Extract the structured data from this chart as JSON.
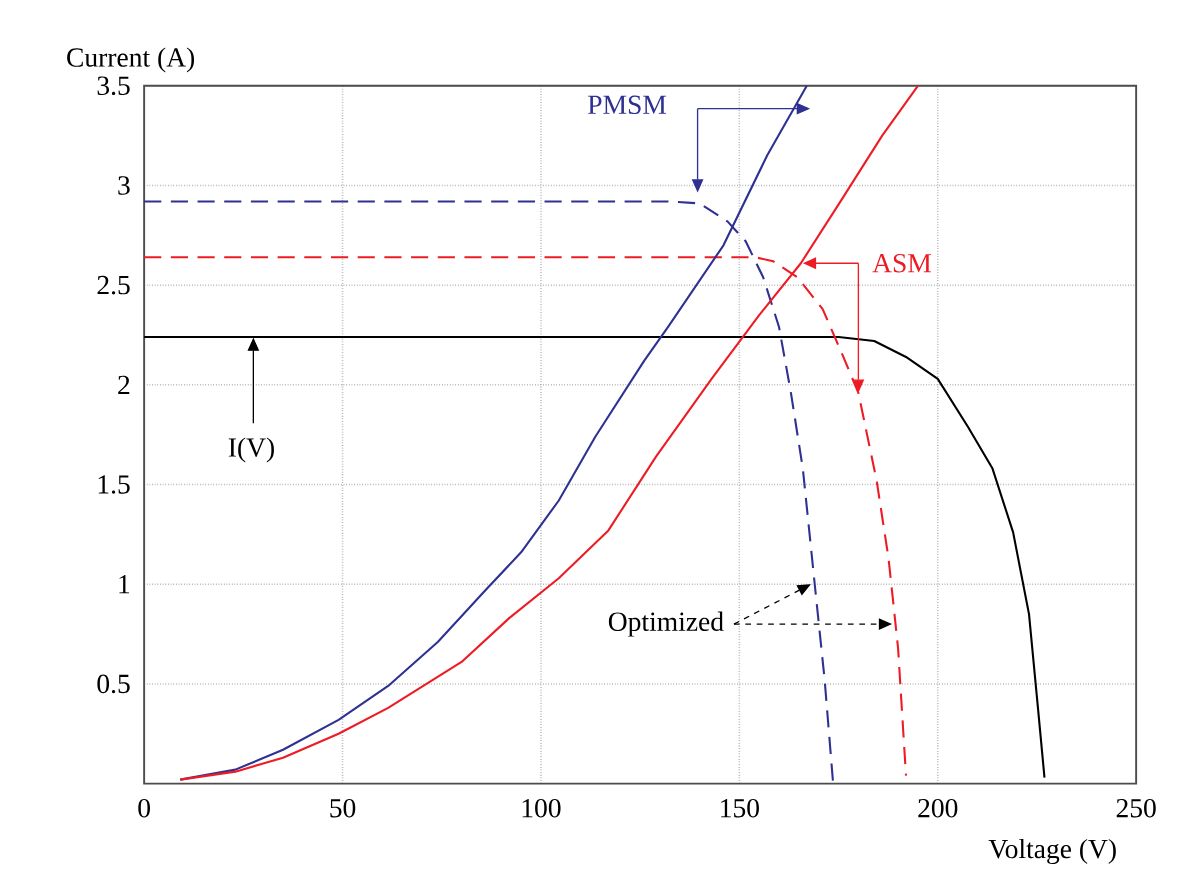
{
  "chart_data": {
    "type": "line",
    "xlabel": "Voltage (V)",
    "ylabel": "Current (A)",
    "xlim": [
      0,
      250
    ],
    "ylim": [
      0,
      3.5
    ],
    "xticks": [
      0,
      50,
      100,
      150,
      200,
      250
    ],
    "yticks": [
      0.5,
      1,
      1.5,
      2,
      2.5,
      3,
      3.5
    ],
    "grid": true,
    "annotations": [
      {
        "text": "Optimized",
        "x": 189,
        "y": 0.8
      }
    ],
    "series": [
      {
        "name": "I(V)",
        "color": "#000000",
        "line_style": "solid",
        "x": [
          0,
          175,
          184,
          192,
          200,
          207.6,
          213.8,
          219,
          223,
          225.3,
          226.9
        ],
        "values": [
          2.24,
          2.24,
          2.22,
          2.14,
          2.03,
          1.79,
          1.58,
          1.26,
          0.85,
          0.37,
          0.03
        ]
      },
      {
        "name": "PMSM",
        "color": "#2e3192",
        "line_style": "dashed",
        "x": [
          0,
          132,
          140,
          147,
          151.6,
          156,
          160,
          163,
          166,
          169,
          171.5,
          173.6
        ],
        "values": [
          2.92,
          2.92,
          2.91,
          2.82,
          2.72,
          2.54,
          2.29,
          1.96,
          1.58,
          1.0,
          0.52,
          0.01
        ]
      },
      {
        "name": "ASM",
        "color": "#ed1c24",
        "line_style": "dashed",
        "x": [
          0,
          148,
          154,
          158.5,
          164.6,
          171,
          176,
          180,
          184.6,
          187.6,
          190,
          192
        ],
        "values": [
          2.64,
          2.64,
          2.64,
          2.62,
          2.54,
          2.38,
          2.15,
          1.96,
          1.52,
          1.13,
          0.68,
          0.04
        ]
      },
      {
        "color": "#2e3192",
        "line_style": "solid",
        "x": [
          9.1,
          23,
          35,
          49,
          61.5,
          74,
          86,
          95,
          104.5,
          113.7,
          126,
          132,
          146,
          157,
          167
        ],
        "values": [
          0.02,
          0.07,
          0.17,
          0.32,
          0.49,
          0.71,
          0.97,
          1.16,
          1.42,
          1.74,
          2.12,
          2.29,
          2.7,
          3.15,
          3.5
        ]
      },
      {
        "color": "#ed1c24",
        "line_style": "solid",
        "x": [
          9.1,
          23,
          35,
          49,
          61.5,
          80,
          92,
          104.5,
          117,
          129,
          143,
          155,
          165.5,
          175.5,
          186,
          195
        ],
        "values": [
          0.02,
          0.06,
          0.13,
          0.25,
          0.38,
          0.61,
          0.83,
          1.03,
          1.27,
          1.64,
          2.03,
          2.35,
          2.61,
          2.92,
          3.25,
          3.5
        ]
      }
    ]
  }
}
